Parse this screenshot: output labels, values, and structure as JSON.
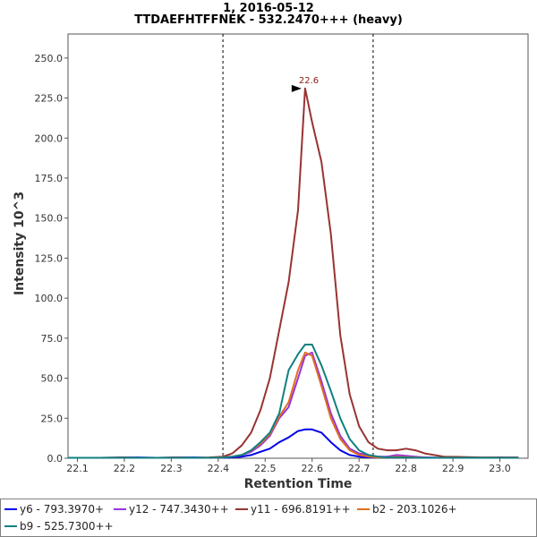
{
  "chart_data": {
    "type": "line",
    "title": "1, 2016-05-12",
    "subtitle": "TTDAEFHTFFNEK - 532.2470+++ (heavy)",
    "xlabel": "Retention Time",
    "ylabel": "Intensity 10^3",
    "xlim": [
      22.08,
      23.06
    ],
    "ylim": [
      0,
      265
    ],
    "x_ticks": [
      "22.1",
      "22.2",
      "22.3",
      "22.4",
      "22.5",
      "22.6",
      "22.7",
      "22.8",
      "22.9",
      "23.0"
    ],
    "y_ticks": [
      "0.0",
      "25.0",
      "50.0",
      "75.0",
      "100.0",
      "125.0",
      "150.0",
      "175.0",
      "200.0",
      "225.0",
      "250.0"
    ],
    "grid": false,
    "legend_position": "bottom",
    "integration_bounds": [
      22.41,
      22.73
    ],
    "peak_annotation": {
      "label": "22.6",
      "x": 22.585,
      "y": 231
    },
    "x": [
      22.08,
      22.11,
      22.15,
      22.19,
      22.23,
      22.27,
      22.31,
      22.35,
      22.38,
      22.41,
      22.43,
      22.45,
      22.47,
      22.49,
      22.51,
      22.53,
      22.55,
      22.57,
      22.585,
      22.6,
      22.62,
      22.64,
      22.66,
      22.68,
      22.7,
      22.72,
      22.74,
      22.76,
      22.78,
      22.8,
      22.82,
      22.84,
      22.88,
      22.92,
      22.96,
      23.0,
      23.04
    ],
    "series": [
      {
        "name": "y6 - 793.3970+",
        "color": "#0000ee",
        "values": [
          0.3,
          0.3,
          0.3,
          0.4,
          0.5,
          0.3,
          0.4,
          0.5,
          0.3,
          0.3,
          0.5,
          1,
          2,
          4,
          6,
          10,
          13,
          17,
          18,
          18,
          16,
          10,
          5,
          2,
          1,
          0.5,
          0.5,
          0.4,
          0.8,
          0.5,
          0.4,
          0.4,
          0.3,
          0.3,
          0.3,
          0.4,
          0.3
        ]
      },
      {
        "name": "y12 - 747.3430++",
        "color": "#9933dd",
        "values": [
          0.3,
          0.3,
          0.3,
          0.3,
          0.3,
          0.3,
          0.3,
          0.3,
          0.3,
          0.5,
          1,
          2,
          4,
          8,
          14,
          25,
          32,
          50,
          64,
          66,
          48,
          28,
          14,
          6,
          3,
          2,
          1,
          1,
          2,
          1.5,
          1,
          0.5,
          0.3,
          0.3,
          0.3,
          0.3,
          0.3
        ]
      },
      {
        "name": "y11 - 696.8191++",
        "color": "#993333",
        "values": [
          0.3,
          0.3,
          0.3,
          0.5,
          0.3,
          0.3,
          0.5,
          0.3,
          0.5,
          1,
          3,
          8,
          16,
          30,
          50,
          80,
          110,
          155,
          231,
          210,
          185,
          140,
          77,
          40,
          20,
          10,
          6,
          5,
          5,
          6,
          5,
          3,
          1,
          0.8,
          0.5,
          0.5,
          0.5
        ]
      },
      {
        "name": "b2 - 203.1026+",
        "color": "#e06f1f",
        "values": [
          0.3,
          0.3,
          0.3,
          0.3,
          0.3,
          0.3,
          0.3,
          0.3,
          0.3,
          0.5,
          1,
          2,
          5,
          9,
          15,
          26,
          35,
          55,
          66,
          64,
          45,
          25,
          12,
          5,
          2,
          1,
          0.5,
          0.5,
          1,
          0.8,
          0.5,
          0.3,
          0.3,
          0.3,
          0.3,
          0.3,
          0.3
        ]
      },
      {
        "name": "b9 - 525.7300++",
        "color": "#0f8080",
        "values": [
          0.3,
          0.3,
          0.3,
          0.3,
          0.3,
          0.3,
          0.3,
          0.3,
          0.3,
          0.5,
          1,
          2,
          5,
          10,
          16,
          28,
          55,
          65,
          71,
          71,
          58,
          42,
          25,
          12,
          5,
          2,
          1,
          0.5,
          0.5,
          0.5,
          0.3,
          0.3,
          0.3,
          0.3,
          0.3,
          0.3,
          0.3
        ]
      }
    ]
  }
}
